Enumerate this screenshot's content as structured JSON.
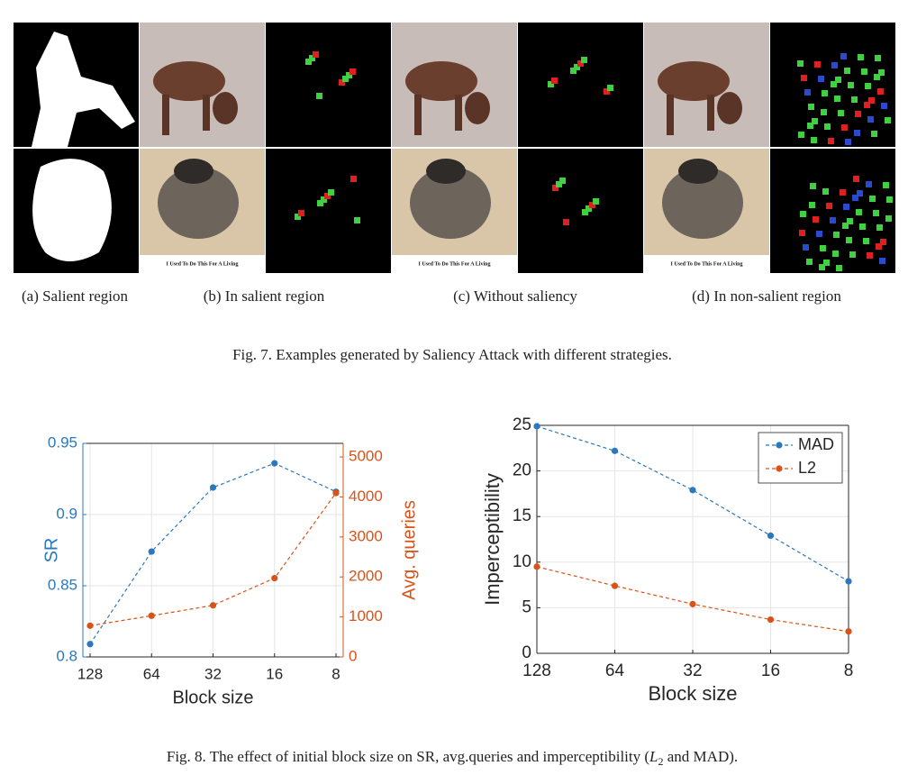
{
  "figure7": {
    "image_text": "I Used To Do This For A Living",
    "subcaptions": [
      "(a)  Salient region",
      "(b)  In salient region",
      "(c)  Without saliency",
      "(d)  In non-salient region"
    ],
    "caption": "Fig. 7.  Examples generated by Saliency Attack with different strategies."
  },
  "chart_data": [
    {
      "type": "line",
      "categories": [
        "128",
        "64",
        "32",
        "16",
        "8"
      ],
      "xlabel": "Block size",
      "ylabel": "SR",
      "y2label": "Avg. queries",
      "ylim": [
        0.8,
        0.95
      ],
      "yticks": [
        0.8,
        0.85,
        0.9,
        0.95
      ],
      "y2lim": [
        0,
        5340
      ],
      "y2ticks": [
        0,
        1000,
        2000,
        3000,
        4000,
        5000
      ],
      "grid": true,
      "series": [
        {
          "name": "SR",
          "color": "#2b78be",
          "values": [
            0.809,
            0.874,
            0.919,
            0.936,
            0.916
          ]
        },
        {
          "name": "Avg. queries",
          "color": "#d95319",
          "axis": "y2",
          "values": [
            780,
            1030,
            1290,
            1970,
            4100
          ]
        }
      ]
    },
    {
      "type": "line",
      "categories": [
        "128",
        "64",
        "32",
        "16",
        "8"
      ],
      "xlabel": "Block size",
      "ylabel": "Imperceptibility",
      "ylim": [
        0,
        25
      ],
      "yticks": [
        0,
        5,
        10,
        15,
        20,
        25
      ],
      "grid": true,
      "legend": "top-right",
      "series": [
        {
          "name": "MAD",
          "color": "#2b78be",
          "values": [
            24.9,
            22.2,
            17.9,
            12.9,
            7.9
          ]
        },
        {
          "name": "L2",
          "color": "#d95319",
          "values": [
            9.5,
            7.4,
            5.4,
            3.7,
            2.4
          ]
        }
      ]
    }
  ],
  "figure8": {
    "caption": [
      "Fig. 8.  The effect of initial block size on SR, avg.queries and imperceptibility (",
      "L",
      "2",
      " and MAD)."
    ]
  }
}
